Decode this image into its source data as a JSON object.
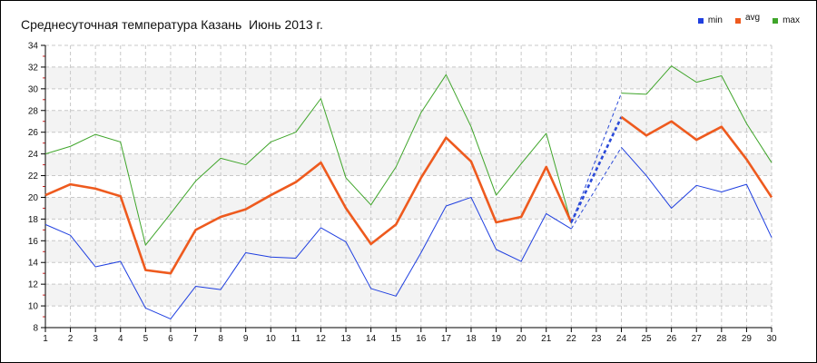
{
  "page": {
    "title": "Среднесуточная температура Казань  Июнь 2013 г."
  },
  "legend": [
    {
      "label": "min",
      "color": "#1f3fe0"
    },
    {
      "label": "avg",
      "color": "#ee5a1e"
    },
    {
      "label": "max",
      "color": "#3fa52a"
    }
  ],
  "chart_data": {
    "type": "line",
    "title": "Среднесуточная температура Казань  Июнь 2013 г.",
    "xlabel": "",
    "ylabel": "",
    "x": [
      1,
      2,
      3,
      4,
      5,
      6,
      7,
      8,
      9,
      10,
      11,
      12,
      13,
      14,
      15,
      16,
      17,
      18,
      19,
      20,
      21,
      22,
      23,
      24,
      25,
      26,
      27,
      28,
      29,
      30
    ],
    "xlim": [
      1,
      30
    ],
    "ylim": [
      8,
      34
    ],
    "yticks": [
      8,
      10,
      12,
      14,
      16,
      18,
      20,
      22,
      24,
      26,
      28,
      30,
      32,
      34
    ],
    "grid": true,
    "legend_position": "top-right",
    "missing_x": 23,
    "series": [
      {
        "name": "min",
        "color": "#1f3fe0",
        "values": [
          17.5,
          16.5,
          13.6,
          14.1,
          9.8,
          8.8,
          11.8,
          11.5,
          14.9,
          14.5,
          14.4,
          17.2,
          15.9,
          11.6,
          10.9,
          14.9,
          19.2,
          20.0,
          15.2,
          14.1,
          18.5,
          17.1,
          null,
          24.6,
          22.0,
          19.0,
          21.1,
          20.5,
          21.2,
          16.3
        ]
      },
      {
        "name": "avg",
        "color": "#ee5a1e",
        "values": [
          20.2,
          21.2,
          20.8,
          20.1,
          13.3,
          13.0,
          17.0,
          18.2,
          18.9,
          20.2,
          21.4,
          23.2,
          19.0,
          15.7,
          17.5,
          21.8,
          25.5,
          23.3,
          17.7,
          18.2,
          22.8,
          17.7,
          null,
          27.4,
          25.7,
          27.0,
          25.3,
          26.5,
          23.5,
          20.0
        ]
      },
      {
        "name": "max",
        "color": "#3fa52a",
        "values": [
          24.0,
          24.7,
          25.8,
          25.1,
          15.6,
          18.5,
          21.5,
          23.6,
          23.0,
          25.1,
          26.0,
          29.1,
          21.8,
          19.3,
          22.8,
          27.8,
          31.3,
          26.5,
          20.2,
          23.1,
          25.9,
          17.6,
          null,
          29.6,
          29.5,
          32.1,
          30.6,
          31.2,
          26.8,
          23.2
        ]
      }
    ]
  }
}
